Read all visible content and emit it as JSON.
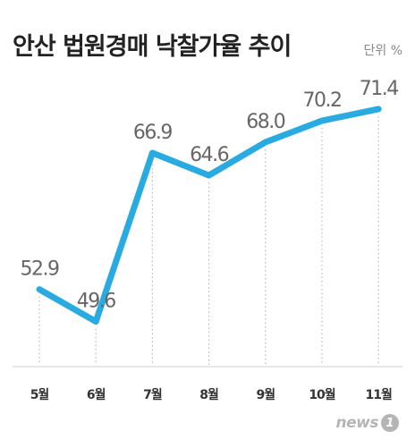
{
  "header": {
    "title": "안산 법원경매 낙찰가율 추이",
    "unit": "단위 %"
  },
  "chart_data": {
    "type": "line",
    "title": "안산 법원경매 낙찰가율 추이",
    "xlabel": "",
    "ylabel": "",
    "unit": "단위 %",
    "categories": [
      "5월",
      "6월",
      "7월",
      "8월",
      "9월",
      "10월",
      "11월"
    ],
    "series": [
      {
        "values": [
          52.9,
          49.6,
          66.9,
          64.6,
          68.0,
          70.2,
          71.4
        ],
        "labels": [
          "52.9",
          "49.6",
          "66.9",
          "64.6",
          "68.0",
          "70.2",
          "71.4"
        ]
      }
    ],
    "grid": false,
    "line_color": "#29abe2"
  },
  "logo": {
    "text": "news",
    "mark": "1"
  }
}
